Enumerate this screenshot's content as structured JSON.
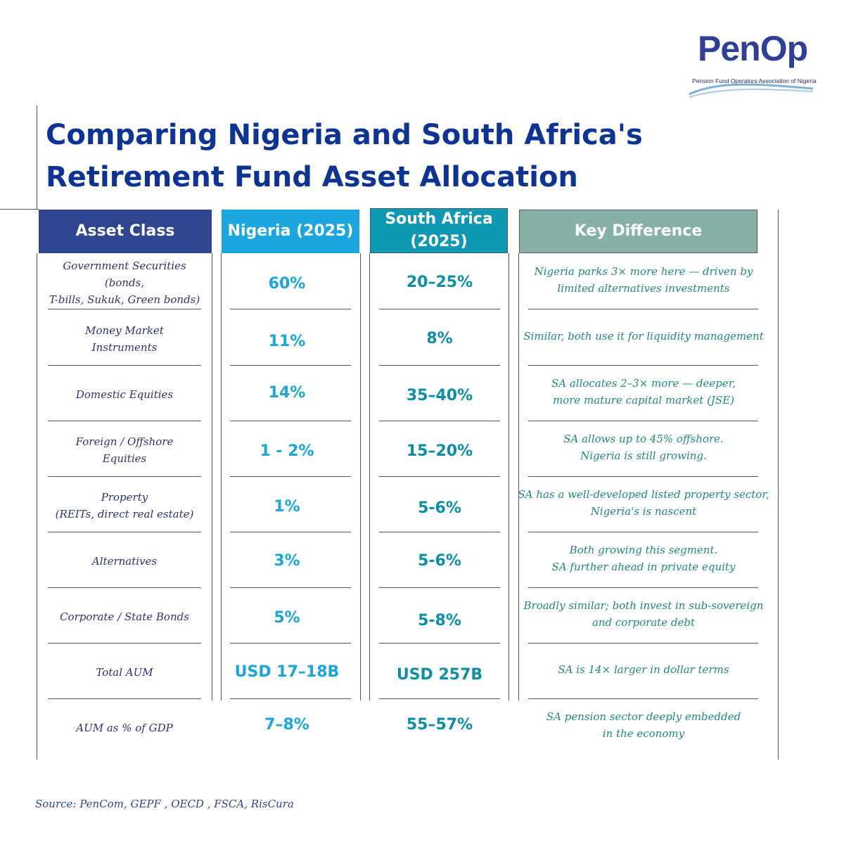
{
  "logo": {
    "word": "PenOp",
    "subtitle": "Pension Fund Operators Association of Nigeria",
    "colors": {
      "word": "#2f3f98",
      "wave": "#7fb0d6"
    }
  },
  "title": {
    "line1": "Comparing Nigeria and South Africa's",
    "line2": "Retirement Fund Asset Allocation"
  },
  "headers": {
    "asset_class": "Asset Class",
    "nigeria": "Nigeria (2025)",
    "south_africa_line1": "South Africa",
    "south_africa_line2": "(2025)",
    "key_difference": "Key Difference"
  },
  "rows": [
    {
      "asset": [
        "Government Securities (bonds,",
        "T-bills, Sukuk, Green bonds)"
      ],
      "nigeria": "60%",
      "south_africa": "20–25%",
      "key": [
        "Nigeria parks 3× more here — driven by",
        "limited alternatives investments"
      ]
    },
    {
      "asset": [
        "Money Market",
        "Instruments"
      ],
      "nigeria": "11%",
      "south_africa": "8%",
      "key": [
        "Similar, both use it for liquidity management"
      ]
    },
    {
      "asset": [
        "Domestic Equities"
      ],
      "nigeria": "14%",
      "south_africa": "35–40%",
      "key": [
        "SA allocates 2–3× more — deeper,",
        "more mature capital market (JSE)"
      ]
    },
    {
      "asset": [
        "Foreign / Offshore",
        "Equities"
      ],
      "nigeria": "1 - 2%",
      "south_africa": "15–20%",
      "key": [
        "SA allows up to 45% offshore.",
        "Nigeria is still growing."
      ]
    },
    {
      "asset": [
        "Property",
        "(REITs, direct real estate)"
      ],
      "nigeria": "1%",
      "south_africa": "5-6%",
      "key": [
        "SA has a well-developed listed property sector,",
        "Nigeria's is nascent"
      ]
    },
    {
      "asset": [
        "Alternatives"
      ],
      "nigeria": "3%",
      "south_africa": "5-6%",
      "key": [
        "Both growing this segment.",
        "SA further ahead in private equity"
      ]
    },
    {
      "asset": [
        "Corporate / State Bonds"
      ],
      "nigeria": "5%",
      "south_africa": "5-8%",
      "key": [
        "Broadly similar; both invest in sub-sovereign",
        "and corporate debt"
      ]
    },
    {
      "asset": [
        "Total AUM"
      ],
      "nigeria": "USD 17–18B",
      "south_africa": "USD 257B",
      "key": [
        "SA is 14× larger in dollar terms"
      ]
    },
    {
      "asset": [
        "AUM as % of GDP"
      ],
      "nigeria": "7–8%",
      "south_africa": "55–57%",
      "key": [
        "SA pension sector deeply embedded",
        "in the economy"
      ]
    }
  ],
  "source": "Source: PenCom, GEPF , OECD , FSCA, RisCura",
  "colors": {
    "title": "#0d3494",
    "asset_header": "#2f4590",
    "nigeria_header": "#1aa7e0",
    "south_africa_header": "#0e98b3",
    "key_header": "#87b0a8",
    "nigeria_value": "#18a6dc",
    "south_africa_value": "#0c8ea6",
    "key_text": "#208a7a"
  }
}
